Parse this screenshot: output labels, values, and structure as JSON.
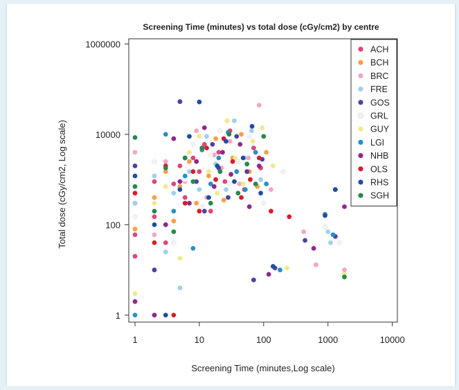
{
  "chart_data": {
    "type": "scatter",
    "title": "Screening Time (minutes) vs total dose (cGy/cm2) by centre",
    "xlabel": "Screening Time (minutes,Log scale)",
    "ylabel": "Total dose (cGy/cm2, Log scale)",
    "xscale": "log",
    "yscale": "log",
    "xlim": [
      0.8,
      12000
    ],
    "ylim": [
      0.7,
      1300000
    ],
    "x_ticks": [
      1,
      10,
      100,
      1000,
      10000
    ],
    "x_tick_labels": [
      "1",
      "10",
      "100",
      "1000",
      "10000"
    ],
    "y_ticks": [
      1,
      100,
      10000,
      1000000
    ],
    "y_tick_labels": [
      "1",
      "100",
      "10000",
      "1000000"
    ],
    "grid": false,
    "legend_position": "top-right",
    "series": [
      {
        "name": "ACH",
        "color": "#e0457b",
        "points": [
          [
            1,
            20
          ],
          [
            1,
            60
          ],
          [
            1,
            300
          ],
          [
            2,
            150
          ],
          [
            2,
            900
          ],
          [
            3,
            40
          ],
          [
            4,
            800
          ],
          [
            5,
            2000
          ],
          [
            6,
            400
          ],
          [
            8,
            3000
          ],
          [
            10,
            1500
          ],
          [
            12,
            6000
          ],
          [
            15,
            200
          ],
          [
            20,
            4000
          ],
          [
            25,
            900
          ],
          [
            30,
            12000
          ],
          [
            40,
            2500
          ],
          [
            50,
            600
          ],
          [
            70,
            5000
          ],
          [
            90,
            1800
          ]
        ]
      },
      {
        "name": "BCH",
        "color": "#f5a04a",
        "points": [
          [
            1,
            80
          ],
          [
            2,
            400
          ],
          [
            3,
            1500
          ],
          [
            4,
            120
          ],
          [
            5,
            700
          ],
          [
            7,
            2500
          ],
          [
            9,
            300
          ],
          [
            11,
            5000
          ],
          [
            14,
            1200
          ],
          [
            18,
            8000
          ],
          [
            24,
            350
          ],
          [
            33,
            3000
          ],
          [
            45,
            10000
          ],
          [
            60,
            1500
          ],
          [
            80,
            700
          ],
          [
            110,
            4000
          ]
        ]
      },
      {
        "name": "BRC",
        "color": "#f2a7c3",
        "points": [
          [
            1,
            4000
          ],
          [
            2,
            60
          ],
          [
            3,
            2500
          ],
          [
            6,
            900
          ],
          [
            9,
            12000
          ],
          [
            13,
            400
          ],
          [
            17,
            3500
          ],
          [
            22,
            1800
          ],
          [
            30,
            7000
          ],
          [
            42,
            800
          ],
          [
            58,
            3000
          ],
          [
            85,
            44000
          ],
          [
            130,
            600
          ],
          [
            420,
            70
          ],
          [
            650,
            13
          ],
          [
            1800,
            10
          ]
        ]
      },
      {
        "name": "FRE",
        "color": "#9fd0ee",
        "points": [
          [
            1,
            300
          ],
          [
            2,
            1200
          ],
          [
            3,
            25
          ],
          [
            4,
            500
          ],
          [
            5,
            4
          ],
          [
            7,
            1500
          ],
          [
            10,
            600
          ],
          [
            13,
            9000
          ],
          [
            18,
            2200
          ],
          [
            26,
            600
          ],
          [
            35,
            20000
          ],
          [
            50,
            3000
          ],
          [
            65,
            12000
          ],
          [
            90,
            1000
          ],
          [
            1000,
            70
          ],
          [
            1100,
            40
          ]
        ]
      },
      {
        "name": "GOS",
        "color": "#5041a0",
        "points": [
          [
            1,
            2000
          ],
          [
            2,
            10
          ],
          [
            3,
            100
          ],
          [
            5,
            53000
          ],
          [
            6,
            3000
          ],
          [
            9,
            900
          ],
          [
            12,
            200
          ],
          [
            16,
            6000
          ],
          [
            20,
            1800
          ],
          [
            28,
            400
          ],
          [
            38,
            9000
          ],
          [
            55,
            1500
          ],
          [
            70,
            6
          ],
          [
            95,
            2800
          ],
          [
            150,
            11
          ],
          [
            440,
            45
          ],
          [
            1300,
            55
          ]
        ]
      },
      {
        "name": "GRL",
        "color": "#f3f3f3",
        "points": [
          [
            1,
            150
          ],
          [
            2,
            2500
          ],
          [
            4,
            40
          ],
          [
            6,
            1000
          ],
          [
            8,
            6000
          ],
          [
            11,
            250
          ],
          [
            15,
            3500
          ],
          [
            21,
            12000
          ],
          [
            29,
            800
          ],
          [
            40,
            2500
          ],
          [
            60,
            9000
          ],
          [
            100,
            300
          ],
          [
            200,
            1500
          ],
          [
            900,
            90
          ],
          [
            1500,
            40
          ]
        ]
      },
      {
        "name": "GUY",
        "color": "#f0e98a",
        "points": [
          [
            1,
            3
          ],
          [
            2,
            300
          ],
          [
            3,
            700
          ],
          [
            5,
            18
          ],
          [
            7,
            4000
          ],
          [
            10,
            9000
          ],
          [
            14,
            1500
          ],
          [
            19,
            500
          ],
          [
            27,
            20000
          ],
          [
            36,
            3000
          ],
          [
            48,
            800
          ],
          [
            68,
            7000
          ],
          [
            95,
            14000
          ],
          [
            140,
            2000
          ],
          [
            230,
            11
          ],
          [
            1800,
            8
          ]
        ]
      },
      {
        "name": "LGI",
        "color": "#2790c3",
        "points": [
          [
            1,
            1
          ],
          [
            2,
            1
          ],
          [
            3,
            10000
          ],
          [
            4,
            200
          ],
          [
            6,
            1200
          ],
          [
            8,
            30
          ],
          [
            11,
            4500
          ],
          [
            15,
            800
          ],
          [
            20,
            3000
          ],
          [
            28,
            11000
          ],
          [
            38,
            1500
          ],
          [
            52,
            600
          ],
          [
            75,
            4000
          ],
          [
            110,
            800
          ],
          [
            180,
            10
          ],
          [
            900,
            170
          ],
          [
            1200,
            60
          ]
        ]
      },
      {
        "name": "NHB",
        "color": "#8e2a8a",
        "points": [
          [
            1,
            2
          ],
          [
            2,
            1
          ],
          [
            3,
            100
          ],
          [
            4,
            8000
          ],
          [
            5,
            900
          ],
          [
            7,
            300
          ],
          [
            9,
            2500
          ],
          [
            12,
            14000
          ],
          [
            17,
            700
          ],
          [
            23,
            4000
          ],
          [
            31,
            1300
          ],
          [
            43,
            6000
          ],
          [
            60,
            250
          ],
          [
            85,
            2000
          ],
          [
            120,
            8
          ],
          [
            600,
            30
          ],
          [
            1300,
            600
          ],
          [
            1800,
            250
          ]
        ]
      },
      {
        "name": "OLS",
        "color": "#d81e2c",
        "points": [
          [
            1,
            500
          ],
          [
            2,
            40
          ],
          [
            3,
            2000
          ],
          [
            4,
            1
          ],
          [
            6,
            300
          ],
          [
            8,
            1500
          ],
          [
            10,
            200
          ],
          [
            13,
            5000
          ],
          [
            18,
            1000
          ],
          [
            24,
            8000
          ],
          [
            33,
            2500
          ],
          [
            45,
            400
          ],
          [
            62,
            1000
          ],
          [
            85,
            3000
          ],
          [
            130,
            200
          ],
          [
            250,
            150
          ]
        ]
      },
      {
        "name": "RHS",
        "color": "#1f4ea3",
        "points": [
          [
            1,
            1200
          ],
          [
            2,
            100
          ],
          [
            3,
            1
          ],
          [
            5,
            600
          ],
          [
            7,
            9000
          ],
          [
            10,
            52000
          ],
          [
            14,
            400
          ],
          [
            19,
            2000
          ],
          [
            26,
            7000
          ],
          [
            35,
            900
          ],
          [
            48,
            3000
          ],
          [
            66,
            15000
          ],
          [
            90,
            500
          ],
          [
            140,
            12
          ],
          [
            900,
            160
          ],
          [
            1300,
            600
          ]
        ]
      },
      {
        "name": "SGH",
        "color": "#27884a",
        "points": [
          [
            1,
            8500
          ],
          [
            1,
            700
          ],
          [
            2,
            200
          ],
          [
            3,
            1800
          ],
          [
            4,
            70
          ],
          [
            6,
            3000
          ],
          [
            8,
            900
          ],
          [
            11,
            5000
          ],
          [
            15,
            300
          ],
          [
            21,
            1500
          ],
          [
            29,
            10000
          ],
          [
            40,
            500
          ],
          [
            55,
            2200
          ],
          [
            75,
            800
          ],
          [
            100,
            9000
          ],
          [
            1800,
            7
          ]
        ]
      }
    ]
  }
}
